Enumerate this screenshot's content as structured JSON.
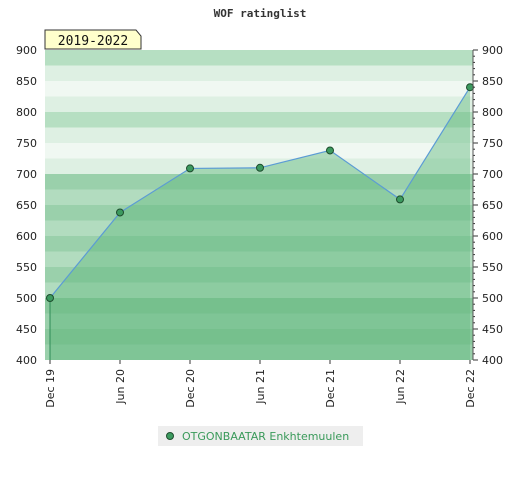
{
  "chart_data": {
    "type": "area",
    "title": "WOF ratinglist",
    "period_label": "2019-2022",
    "xlabel": "",
    "ylabel": "",
    "ylim": [
      400,
      900
    ],
    "yticks": [
      400,
      450,
      500,
      550,
      600,
      650,
      700,
      750,
      800,
      850,
      900
    ],
    "x_categories": [
      "Dec 19",
      "Jun 20",
      "Dec 20",
      "Jun 21",
      "Dec 21",
      "Jun 22",
      "Dec 22"
    ],
    "grid": true,
    "legend_position": "bottom-center",
    "series": [
      {
        "name": "OTGONBAATAR Enkhtemuulen",
        "x": [
          "Dec 19",
          "Jun 20",
          "Dec 20",
          "Jun 21",
          "Dec 21",
          "Jun 22",
          "Dec 22"
        ],
        "values": [
          500,
          638,
          709,
          710,
          738,
          659,
          840
        ]
      }
    ],
    "colors": {
      "line": "#5b9bd5",
      "marker_fill": "#3c9a5f",
      "marker_stroke": "#1e4d2e",
      "fill": "#5fb97d",
      "band_dark": "#b6dfc2",
      "band_light": "#def0e3",
      "band_lightest": "#f0f8f2",
      "legend_text": "#3a9a5a",
      "period_bg": "#ffffcc"
    }
  }
}
